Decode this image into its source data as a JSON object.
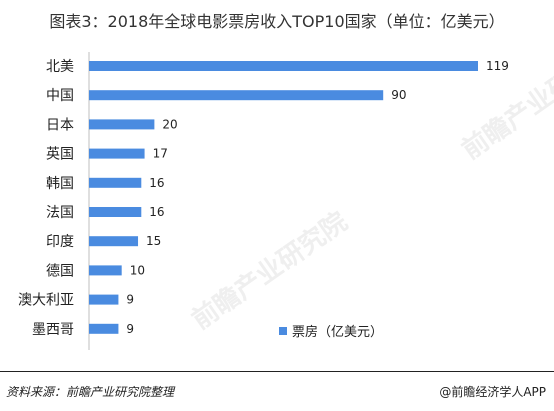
{
  "chart_data": {
    "type": "bar",
    "orientation": "horizontal",
    "title": "图表3：2018年全球电影票房收入TOP10国家（单位：亿美元）",
    "categories": [
      "北美",
      "中国",
      "日本",
      "英国",
      "韩国",
      "法国",
      "印度",
      "德国",
      "澳大利亚",
      "墨西哥"
    ],
    "series": [
      {
        "name": "票房（亿美元）",
        "values": [
          119,
          90,
          20,
          17,
          16,
          16,
          15,
          10,
          9,
          9
        ]
      }
    ],
    "xlim": [
      0,
      119
    ],
    "grid": false,
    "legend_position": "bottom-right",
    "colors": {
      "bar": "#4a8be0"
    }
  },
  "watermark": {
    "text": "前瞻产业研究院"
  },
  "footer": {
    "source": "资料来源：前瞻产业研究院整理",
    "brand": "@前瞻经济学人APP"
  }
}
